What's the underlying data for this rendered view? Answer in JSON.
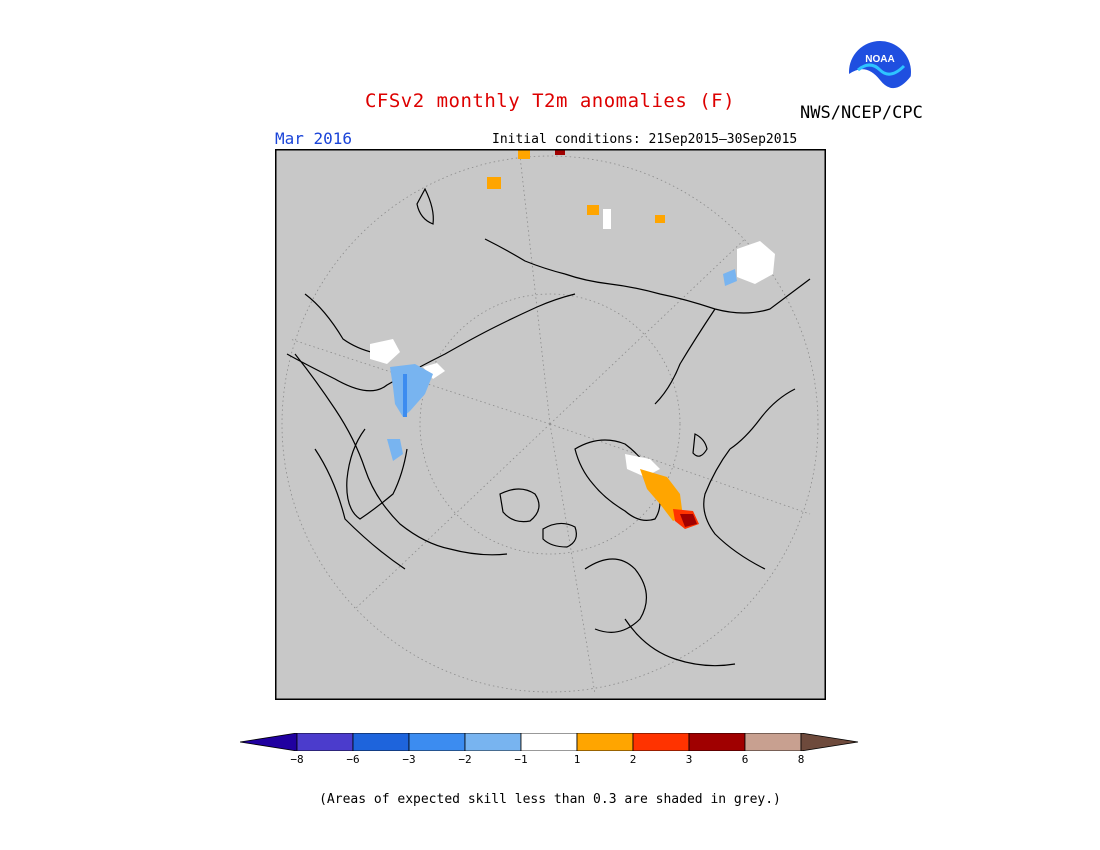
{
  "header": {
    "title": "CFSv2 monthly T2m anomalies (F)",
    "agency": "NWS/NCEP/CPC",
    "month": "Mar 2016",
    "initial_conditions": "Initial conditions: 21Sep2015–30Sep2015",
    "logo_text": "NOAA"
  },
  "map": {
    "projection": "north polar stereographic",
    "background_color": "#c8c8c8",
    "highlights": [
      {
        "region": "eastern Canada / Hudson Bay",
        "class": "-1 to 1",
        "color": "#ffffff"
      },
      {
        "region": "eastern Canada / Hudson Bay",
        "class": "-2 to -1",
        "color": "#78b4f0"
      },
      {
        "region": "central Siberia",
        "class": "1 to 2",
        "color": "#ffa500"
      },
      {
        "region": "central Siberia",
        "class": "3 to 6",
        "color": "#a00000"
      },
      {
        "region": "northwestern North America",
        "class": "-1 to 1",
        "color": "#ffffff"
      },
      {
        "region": "northwestern North America",
        "class": "-2 to -1",
        "color": "#78b4f0"
      },
      {
        "region": "Kazakhstan / western Siberia",
        "class": "-1 to 1",
        "color": "#ffffff"
      },
      {
        "region": "Kazakhstan / western Siberia",
        "class": "1 to 2",
        "color": "#ffa500"
      },
      {
        "region": "Kazakhstan / western Siberia",
        "class": "2 to 3",
        "color": "#ff3300"
      },
      {
        "region": "Kazakhstan / western Siberia",
        "class": "3 to 6",
        "color": "#a00000"
      }
    ]
  },
  "colorbar": {
    "colors": [
      "#2000a0",
      "#4b3ccc",
      "#1e64dc",
      "#3c8cf0",
      "#78b4f0",
      "#ffffff",
      "#ffa500",
      "#ff3300",
      "#a00000",
      "#c8a090",
      "#6e4a3c"
    ],
    "ticks": [
      "−8",
      "−6",
      "−3",
      "−2",
      "−1",
      "1",
      "2",
      "3",
      "6",
      "8"
    ]
  },
  "footnote": "(Areas of expected skill less than 0.3 are shaded in grey.)"
}
